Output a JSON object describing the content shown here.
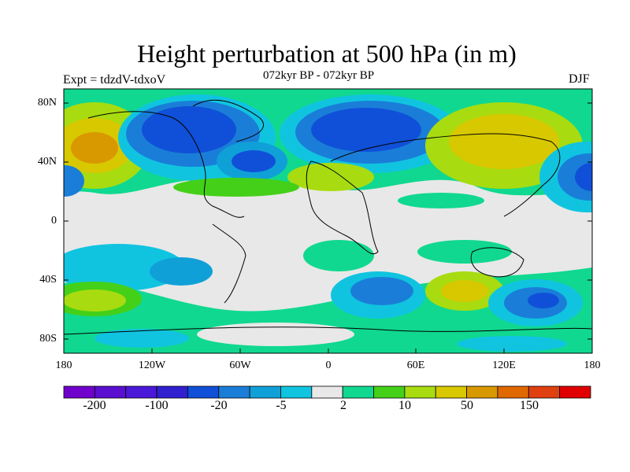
{
  "header": {
    "title": "Height perturbation at 500 hPa (in m)",
    "experiment": "Expt = tdzdV-tdxoV",
    "subtitle": "072kyr BP - 072kyr BP",
    "season": "DJF"
  },
  "axes": {
    "lat_labels": [
      "80N",
      "40N",
      "0",
      "40S",
      "80S"
    ],
    "lon_labels": [
      "180",
      "120W",
      "60W",
      "0",
      "60E",
      "120E",
      "180"
    ]
  },
  "colorbar": {
    "labels": [
      "-200",
      "-100",
      "-20",
      "-5",
      "2",
      "10",
      "50",
      "150"
    ],
    "colors": [
      "#7000cc",
      "#5a0fd0",
      "#4a18d8",
      "#3020d0",
      "#1050d8",
      "#1a7ed8",
      "#10a0d8",
      "#10c4e0",
      "#e8e8e8",
      "#10d890",
      "#44d018",
      "#a8dc10",
      "#d8c800",
      "#d89800",
      "#e06800",
      "#e04010",
      "#e00000"
    ]
  },
  "map_legend": {
    "ocean": "#e8e8e8",
    "coast": "#000000"
  }
}
